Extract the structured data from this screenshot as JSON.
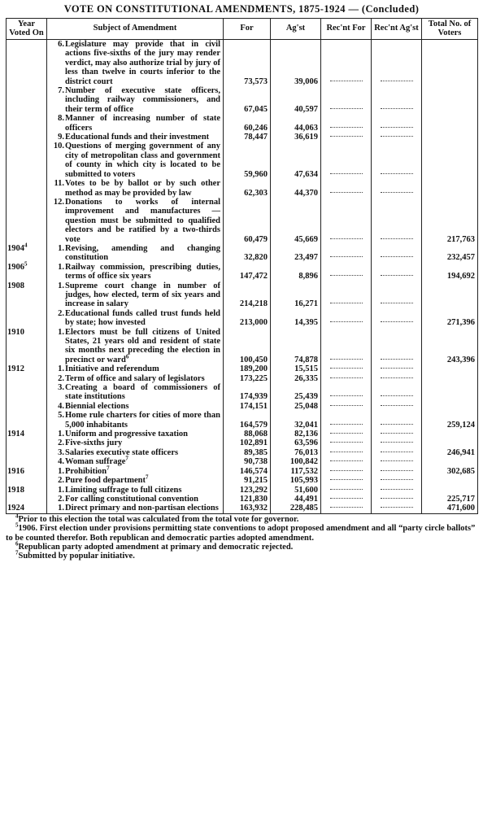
{
  "header": {
    "title": "VOTE ON CONSTITUTIONAL AMENDMENTS, 1875-1924 — (Concluded)"
  },
  "table": {
    "columns": [
      "Year Voted On",
      "Subject of Amendment",
      "For",
      "Ag'st",
      "Rec'nt For",
      "Rec'nt Ag'st",
      "Total No. of Voters"
    ],
    "rows": [
      {
        "year": "",
        "num": "6.",
        "subject": "Legislature may provide that in civil actions five-sixths of the jury may render verdict, may also authorize trial by jury of less than twelve in courts inferior to the district court",
        "for": "73,573",
        "against": "39,006",
        "total": ""
      },
      {
        "year": "",
        "num": "7.",
        "subject": "Number of executive state officers, including railway commissioners, and their term of office",
        "for": "67,045",
        "against": "40,597",
        "total": ""
      },
      {
        "year": "",
        "num": "8.",
        "subject": "Manner of increasing number of state officers",
        "for": "60,246",
        "against": "44,063",
        "total": ""
      },
      {
        "year": "",
        "num": "9.",
        "subject": "Educational funds and their investment",
        "for": "78,447",
        "against": "36,619",
        "total": ""
      },
      {
        "year": "",
        "num": "10.",
        "subject": "Questions of merging government of any city of metropolitan class and government of county in which city is located to be submitted to voters",
        "for": "59,960",
        "against": "47,634",
        "total": ""
      },
      {
        "year": "",
        "num": "11.",
        "subject": "Votes to be by ballot or by such other method as may be provided by law",
        "for": "62,303",
        "against": "44,370",
        "total": ""
      },
      {
        "year": "",
        "num": "12.",
        "subject": "Donations to works of internal improvement and manufactures — question must be submitted to qualified electors and be ratified by a two-thirds vote",
        "for": "60,479",
        "against": "45,669",
        "total": "217,763"
      },
      {
        "year": "1904",
        "year_note": "4",
        "num": "1.",
        "subject": "Revising, amending and changing constitution",
        "for": "32,820",
        "against": "23,497",
        "total": "232,457"
      },
      {
        "year": "1906",
        "year_note": "5",
        "num": "1.",
        "subject": "Railway commission, prescribing duties, terms of office six years",
        "for": "147,472",
        "against": "8,896",
        "total": "194,692"
      },
      {
        "year": "1908",
        "num": "1.",
        "subject": "Supreme court change in number of judges, how elected, term of six years and increase in salary",
        "for": "214,218",
        "against": "16,271",
        "total": ""
      },
      {
        "year": "",
        "num": "2.",
        "subject": "Educational funds called trust funds held by state; how invested",
        "for": "213,000",
        "against": "14,395",
        "total": "271,396"
      },
      {
        "year": "1910",
        "num": "1.",
        "subject": "Electors must be full citizens of United States, 21 years old and resident of state six months next preceding the election in precinct or ward",
        "note": "6",
        "for": "100,450",
        "against": "74,878",
        "total": "243,396"
      },
      {
        "year": "1912",
        "num": "1.",
        "subject": "Initiative and referendum",
        "for": "189,200",
        "against": "15,515",
        "total": ""
      },
      {
        "year": "",
        "num": "2.",
        "subject": "Term of office and salary of legislators",
        "for": "173,225",
        "against": "26,335",
        "total": ""
      },
      {
        "year": "",
        "num": "3.",
        "subject": "Creating a board of commissioners of state institutions",
        "for": "174,939",
        "against": "25,439",
        "total": ""
      },
      {
        "year": "",
        "num": "4.",
        "subject": "Biennial elections",
        "for": "174,151",
        "against": "25,048",
        "total": ""
      },
      {
        "year": "",
        "num": "5.",
        "subject": "Home rule charters for cities of more than 5,000 inhabitants",
        "for": "164,579",
        "against": "32,041",
        "total": "259,124"
      },
      {
        "year": "1914",
        "num": "1.",
        "subject": "Uniform and progressive taxation",
        "for": "88,068",
        "against": "82,136",
        "total": ""
      },
      {
        "year": "",
        "num": "2.",
        "subject": "Five-sixths jury",
        "for": "102,891",
        "against": "63,596",
        "total": ""
      },
      {
        "year": "",
        "num": "3.",
        "subject": "Salaries executive state officers",
        "for": "89,385",
        "against": "76,013",
        "total": "246,941"
      },
      {
        "year": "",
        "num": "4.",
        "subject": "Woman suffrage",
        "note": "7",
        "for": "90,738",
        "against": "100,842",
        "total": ""
      },
      {
        "year": "1916",
        "num": "1.",
        "subject": "Prohibition",
        "note": "7",
        "for": "146,574",
        "against": "117,532",
        "total": "302,685"
      },
      {
        "year": "",
        "num": "2.",
        "subject": "Pure food department",
        "note": "7",
        "for": "91,215",
        "against": "105,993",
        "total": ""
      },
      {
        "year": "1918",
        "num": "1.",
        "subject": "Limiting suffrage to full citizens",
        "for": "123,292",
        "against": "51,600",
        "total": ""
      },
      {
        "year": "",
        "num": "2.",
        "subject": "For calling constitutional convention",
        "for": "121,830",
        "against": "44,491",
        "total": "225,717"
      },
      {
        "year": "1924",
        "num": "1.",
        "subject": "Direct primary and non-partisan elections",
        "for": "163,932",
        "against": "228,485",
        "total": "471,600"
      }
    ]
  },
  "footnotes": [
    {
      "marker": "4",
      "text": "Prior to this election the total was calculated from the total vote for governor."
    },
    {
      "marker": "5",
      "text": "1906. First election under provisions permitting state conventions to adopt proposed amendment and all “party circle ballots” to be counted therefor. Both republican and democratic parties adopted amendment."
    },
    {
      "marker": "6",
      "text": "Republican party adopted amendment at primary and democratic rejected."
    },
    {
      "marker": "7",
      "text": "Submitted by popular initiative."
    }
  ]
}
